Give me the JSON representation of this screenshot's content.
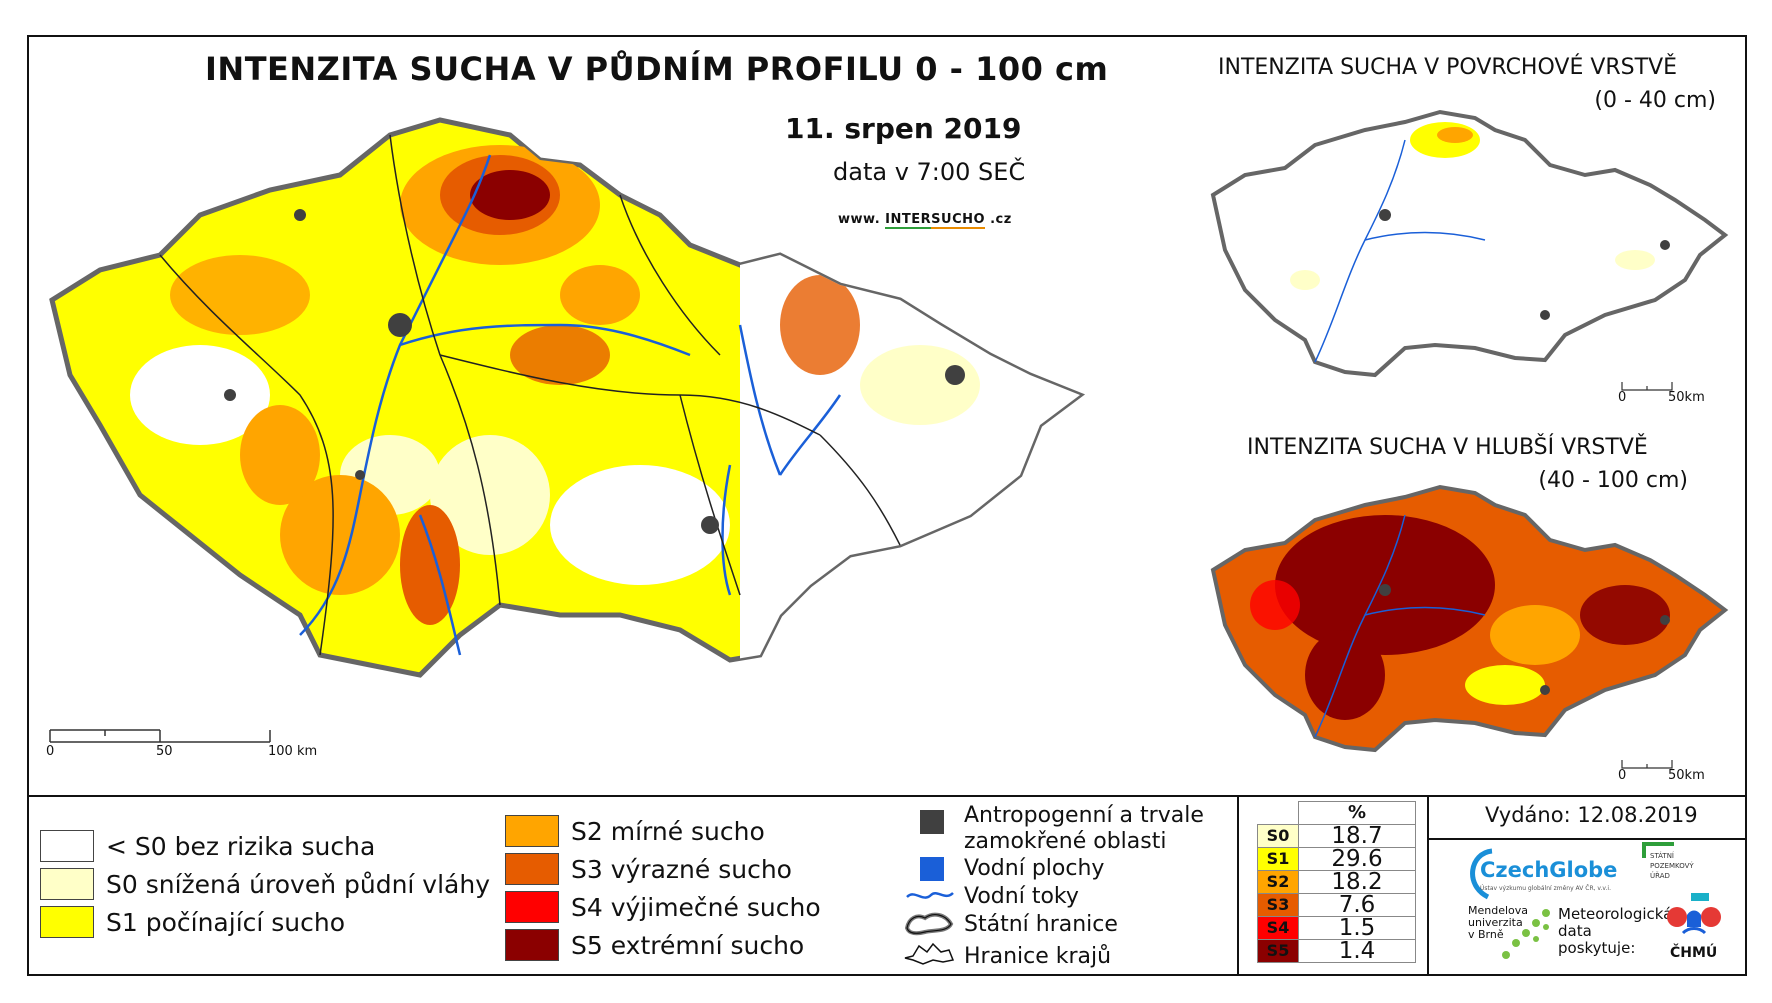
{
  "main": {
    "title": "INTENZITA SUCHA V PŮDNÍM PROFILU 0 - 100 cm",
    "date": "11. srpen 2019",
    "time": "data v 7:00 SEČ",
    "url_prefix": "www.",
    "url_intr": "INTER",
    "url_sucho": "SUCHO",
    "url_suffix": ".cz",
    "scale": [
      "0",
      "50",
      "100 km"
    ]
  },
  "inset_top": {
    "title": "INTENZITA SUCHA V POVRCHOVÉ VRSTVĚ",
    "subtitle": "(0 - 40 cm)",
    "scale": [
      "0",
      "50km"
    ]
  },
  "inset_bottom": {
    "title": "INTENZITA SUCHA V HLUBŠÍ VRSTVĚ",
    "subtitle": "(40 - 100 cm)",
    "scale": [
      "0",
      "50km"
    ]
  },
  "legend_classes": [
    {
      "label": "< S0 bez rizika sucha",
      "color": "#ffffff"
    },
    {
      "label": "S0 snížená úroveň půdní vláhy",
      "color": "#ffffc8"
    },
    {
      "label": "S1 počínající sucho",
      "color": "#ffff00"
    },
    {
      "label": "S2 mírné sucho",
      "color": "#ffa500"
    },
    {
      "label": "S3 výrazné sucho",
      "color": "#e65c00"
    },
    {
      "label": "S4 výjimečné sucho",
      "color": "#ff0000"
    },
    {
      "label": "S5 extrémní sucho",
      "color": "#8b0000"
    }
  ],
  "legend_features": {
    "anthropogenic": "Antropogenní a trvale",
    "anthropogenic2": "zamokřené oblasti",
    "water_bodies": "Vodní plochy",
    "rivers": "Vodní toky",
    "state_border": "Státní hranice",
    "region_border": "Hranice krajů",
    "colors": {
      "anthropogenic": "#404040",
      "water": "#1a5fd8"
    }
  },
  "percentages": {
    "header": "%",
    "rows": [
      {
        "cls": "S0",
        "value": "18.7",
        "color": "#ffffc8"
      },
      {
        "cls": "S1",
        "value": "29.6",
        "color": "#ffff00"
      },
      {
        "cls": "S2",
        "value": "18.2",
        "color": "#ffa500"
      },
      {
        "cls": "S3",
        "value": "7.6",
        "color": "#e65c00"
      },
      {
        "cls": "S4",
        "value": "1.5",
        "color": "#ff0000"
      },
      {
        "cls": "S5",
        "value": "1.4",
        "color": "#8b0000"
      }
    ]
  },
  "issued": "Vydáno: 12.08.2019",
  "logos": {
    "czechglobe": "CzechGlobe",
    "czechglobe_sub": "Ústav výzkumu globální změny AV ČR, v.v.i.",
    "spu1": "STÁTNÍ",
    "spu2": "POZEMKOVÝ",
    "spu3": "ÚŘAD",
    "mendel1": "Mendelova",
    "mendel2": "univerzita",
    "mendel3": "v Brně",
    "provided1": "Meteorologická",
    "provided2": "data",
    "provided3": "poskytuje:",
    "chmu": "ČHMÚ"
  }
}
